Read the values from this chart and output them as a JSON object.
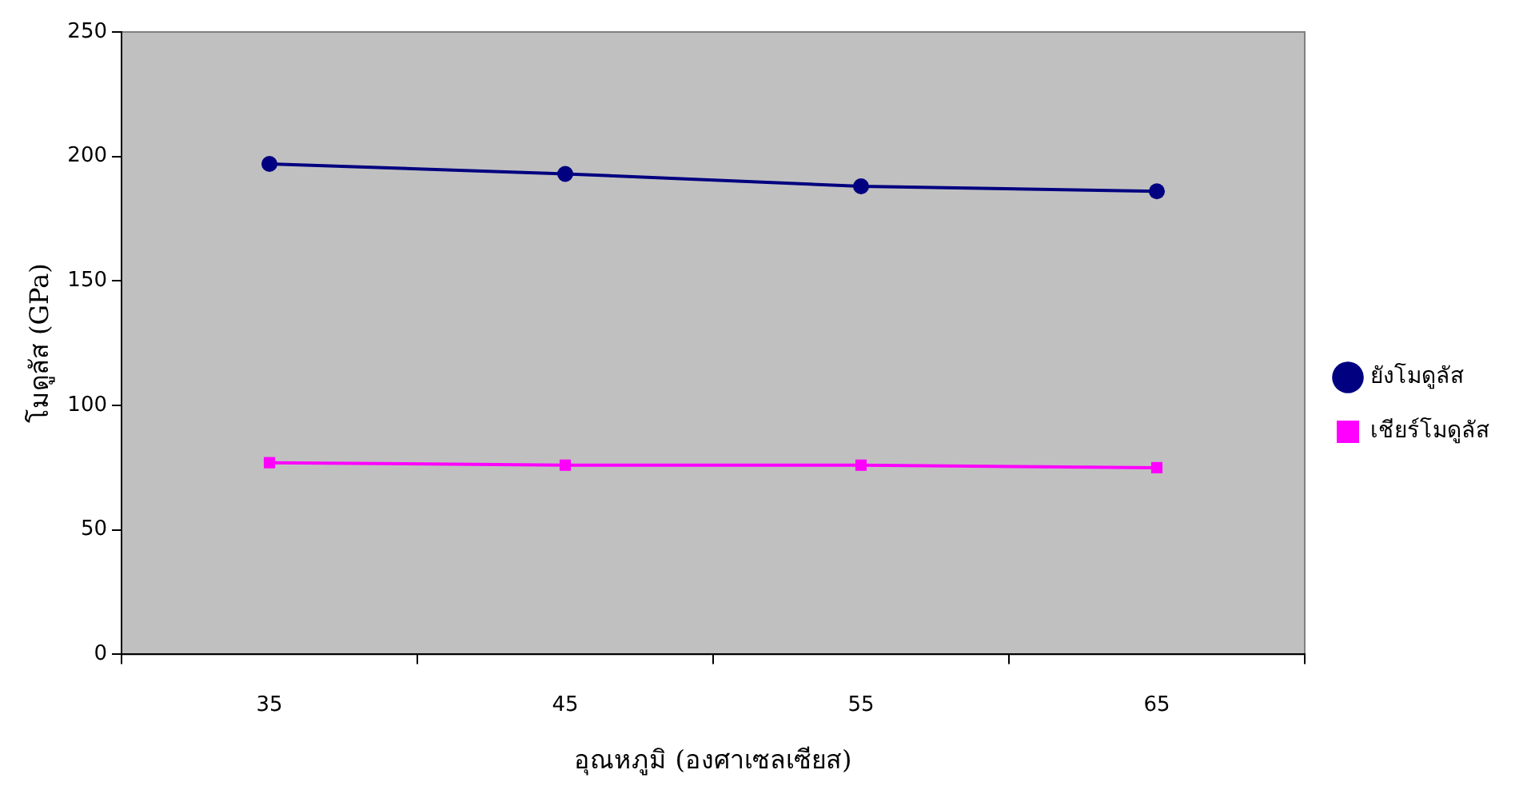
{
  "chart_data": {
    "type": "line",
    "xlabel": "อุณหภูมิ (องศาเซลเซียส)",
    "ylabel": "โมดูลัส (GPa)",
    "categories": [
      "35",
      "45",
      "55",
      "65"
    ],
    "series": [
      {
        "name": "ยังโมดูลัส",
        "color": "#000080",
        "values": [
          197,
          193,
          188,
          186
        ],
        "marker": "circle"
      },
      {
        "name": "เชียร์โมดูลัส",
        "color": "#ff00ff",
        "values": [
          77,
          76,
          76,
          75
        ],
        "marker": "square"
      }
    ],
    "ylim": [
      0,
      250
    ],
    "yticks": [
      0,
      50,
      100,
      150,
      200,
      250
    ],
    "grid": false,
    "legend": "right",
    "line_style": "solid"
  }
}
